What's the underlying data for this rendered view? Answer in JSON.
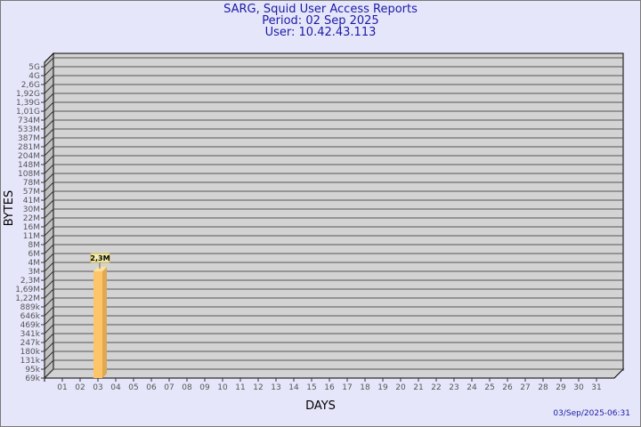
{
  "header": {
    "title": "SARG, Squid User Access Reports",
    "period": "Period: 02 Sep 2025",
    "user": "User: 10.42.43.113"
  },
  "footer": {
    "timestamp": "03/Sep/2025-06:31"
  },
  "chart_data": {
    "type": "bar",
    "title": "SARG, Squid User Access Reports",
    "xlabel": "DAYS",
    "ylabel": "BYTES",
    "yscale": "log",
    "grid": true,
    "y_ticks": [
      "5G",
      "4G",
      "2,6G",
      "1,92G",
      "1,39G",
      "1,01G",
      "734M",
      "533M",
      "387M",
      "281M",
      "204M",
      "148M",
      "108M",
      "78M",
      "57M",
      "41M",
      "30M",
      "22M",
      "16M",
      "11M",
      "8M",
      "6M",
      "4M",
      "3M",
      "2,3M",
      "1,69M",
      "1,22M",
      "889k",
      "646k",
      "469k",
      "341k",
      "247k",
      "180k",
      "131k",
      "95k",
      "69k"
    ],
    "categories": [
      "01",
      "02",
      "03",
      "04",
      "05",
      "06",
      "07",
      "08",
      "09",
      "10",
      "11",
      "12",
      "13",
      "14",
      "15",
      "16",
      "17",
      "18",
      "19",
      "20",
      "21",
      "22",
      "23",
      "24",
      "25",
      "26",
      "27",
      "28",
      "29",
      "30",
      "31"
    ],
    "series": [
      {
        "values": [
          null,
          2300000,
          null,
          null,
          null,
          null,
          null,
          null,
          null,
          null,
          null,
          null,
          null,
          null,
          null,
          null,
          null,
          null,
          null,
          null,
          null,
          null,
          null,
          null,
          null,
          null,
          null,
          null,
          null,
          null,
          null
        ]
      }
    ],
    "data_labels": {
      "02": "2,3M"
    },
    "colors": {
      "bar_front": "#fdc46a",
      "bar_side": "#e0a850",
      "bar_top": "#ffe09a",
      "wall": "#d3d3d3",
      "background": "#e6e6fa",
      "title": "#1a1aa6"
    }
  }
}
